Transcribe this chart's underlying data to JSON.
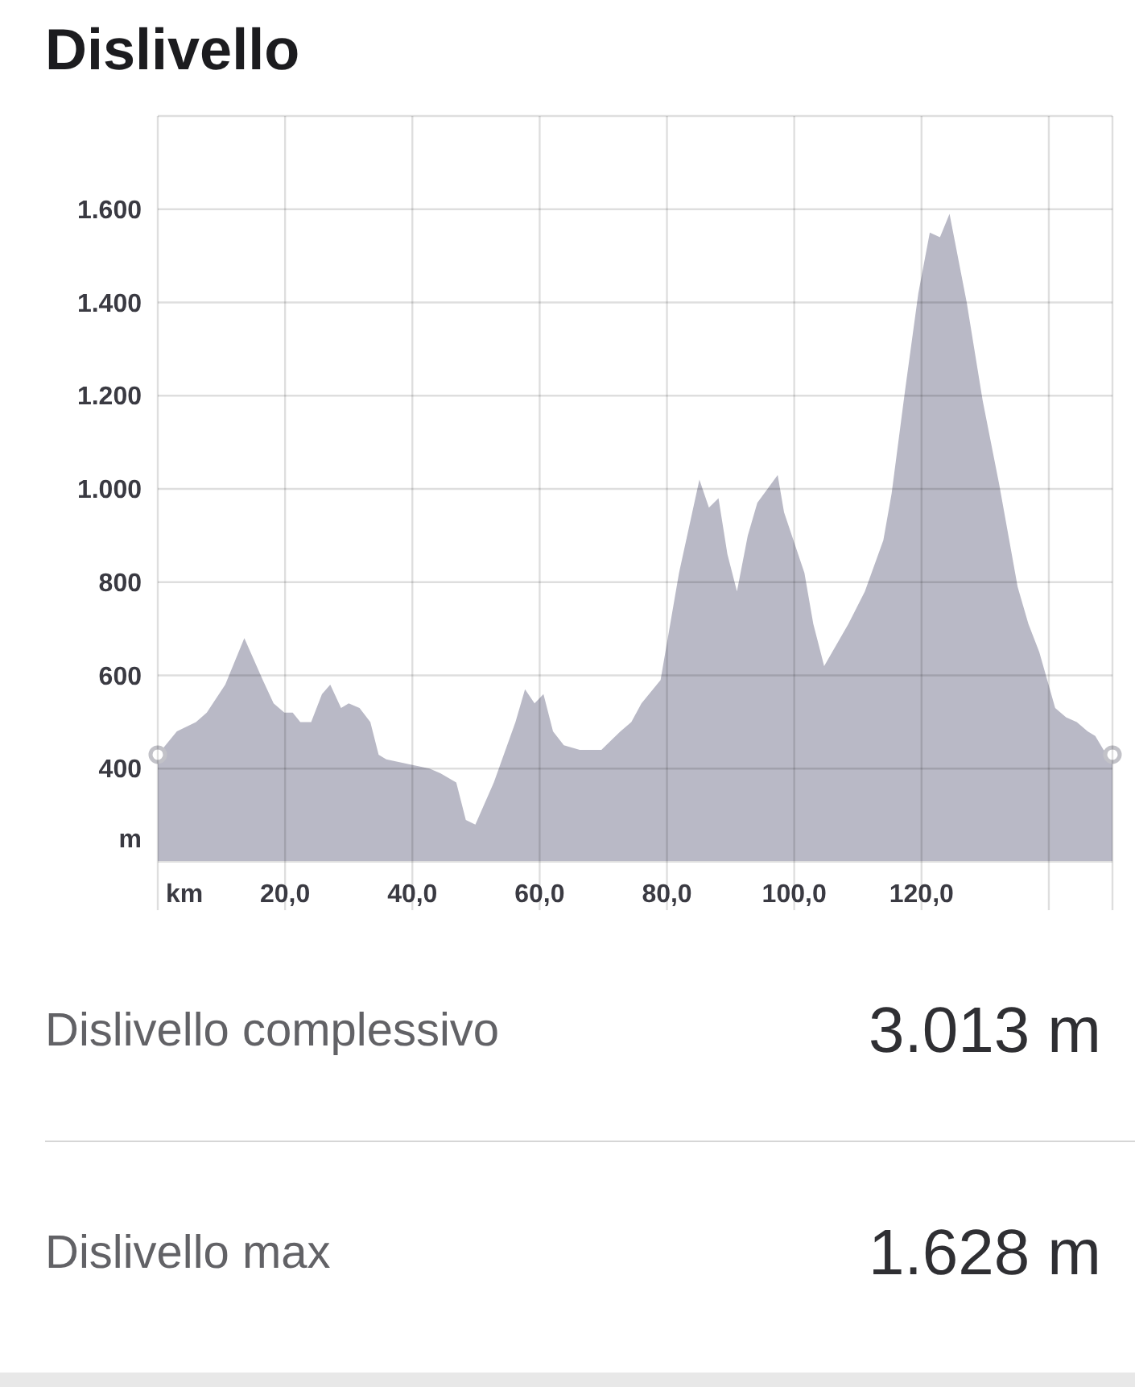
{
  "chart_data": {
    "type": "area",
    "title": "Dislivello",
    "xlabel": "km",
    "ylabel": "m",
    "x": [
      0,
      3.0,
      6.0,
      7.7,
      10.6,
      13.6,
      16.5,
      18.2,
      19.9,
      21.2,
      22.4,
      24.1,
      25.8,
      27.1,
      28.8,
      30.0,
      31.7,
      33.4,
      34.7,
      35.9,
      39.3,
      42.7,
      44.4,
      46.9,
      48.4,
      49.9,
      52.8,
      56.2,
      57.7,
      59.2,
      60.6,
      62.1,
      63.8,
      66.3,
      69.7,
      72.7,
      74.4,
      76.0,
      79.0,
      81.9,
      85.1,
      86.6,
      88.1,
      89.5,
      91.0,
      92.7,
      94.2,
      97.4,
      98.4,
      101.6,
      103.0,
      104.7,
      108.5,
      111.1,
      114.0,
      115.3,
      117.4,
      119.5,
      121.3,
      122.9,
      124.4,
      127.1,
      129.6,
      132.2,
      135.1,
      136.8,
      138.5,
      141.0,
      142.7,
      144.4,
      146.1,
      147.3,
      148.6,
      150
    ],
    "values": [
      430,
      480,
      500,
      520,
      580,
      680,
      590,
      540,
      520,
      520,
      500,
      500,
      560,
      580,
      530,
      540,
      530,
      500,
      430,
      420,
      410,
      400,
      390,
      370,
      290,
      280,
      370,
      500,
      570,
      540,
      560,
      480,
      450,
      440,
      440,
      480,
      500,
      540,
      590,
      820,
      1020,
      960,
      980,
      860,
      780,
      900,
      970,
      1030,
      950,
      820,
      710,
      620,
      710,
      780,
      890,
      990,
      1210,
      1420,
      1550,
      1540,
      1590,
      1400,
      1190,
      1010,
      790,
      710,
      650,
      530,
      510,
      500,
      480,
      470,
      440,
      430
    ],
    "color": "#b9b9c6",
    "xlim": [
      0,
      150
    ],
    "xticks": [
      {
        "value": 0,
        "label": null
      },
      {
        "value": 20,
        "label": "20,0"
      },
      {
        "value": 40,
        "label": "40,0"
      },
      {
        "value": 60,
        "label": "60,0"
      },
      {
        "value": 80,
        "label": "80,0"
      },
      {
        "value": 100,
        "label": "100,0"
      },
      {
        "value": 120,
        "label": "120,0"
      },
      {
        "value": 140,
        "label": null
      },
      {
        "value": 150,
        "label": null
      }
    ],
    "ylim": [
      200,
      1800
    ],
    "yticks": [
      400,
      600,
      800,
      {
        "value": 1000,
        "label": "1.000"
      },
      {
        "value": 1200,
        "label": "1.200"
      },
      {
        "value": 1400,
        "label": "1.400"
      },
      {
        "value": 1600,
        "label": "1.600"
      },
      {
        "value": 1800,
        "label": null
      }
    ],
    "grid": true,
    "annotations": [
      "Dislivello complessivo",
      "3.013 m",
      "Dislivello max",
      "1.628 m"
    ]
  }
}
